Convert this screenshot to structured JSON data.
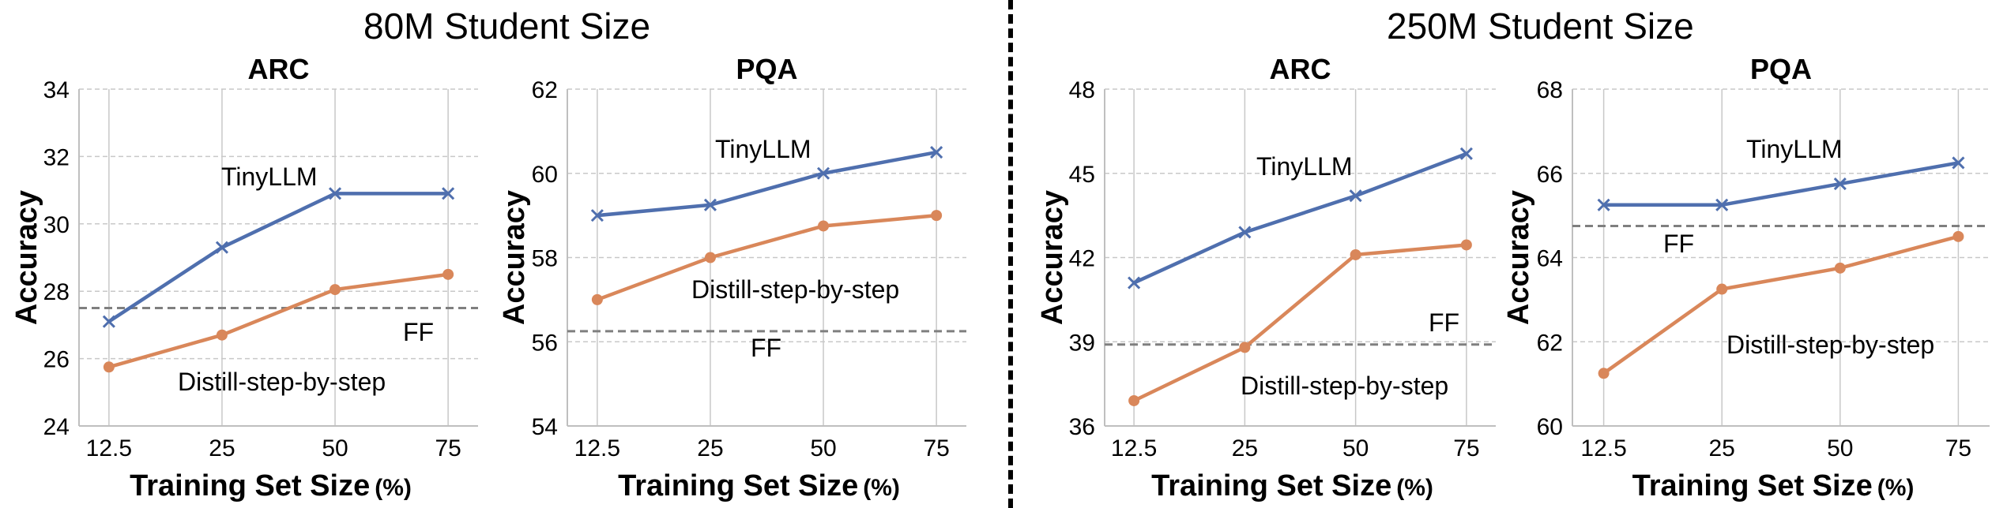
{
  "group_titles": [
    "80M Student Size",
    "250M Student Size"
  ],
  "colors": {
    "tinyllm": "#4F6FAE",
    "distill": "#D9875A",
    "ff": "#7F7F7F",
    "grid": "#C8C8C8"
  },
  "chart_data": [
    {
      "type": "line",
      "title": "ARC",
      "xlabel": "Training Set Size",
      "xlabel_unit": "(%)",
      "ylabel": "Accuracy",
      "categories": [
        "12.5",
        "25",
        "50",
        "75"
      ],
      "ylim": [
        24,
        34
      ],
      "yticks": [
        "24",
        "26",
        "28",
        "30",
        "32",
        "34"
      ],
      "grid": true,
      "series": [
        {
          "name": "TinyLLM",
          "values": [
            27.1,
            29.3,
            30.9,
            30.9
          ],
          "marker": "x"
        },
        {
          "name": "Distill-step-by-step",
          "values": [
            25.75,
            26.7,
            28.05,
            28.5
          ],
          "marker": "circle"
        }
      ],
      "baseline": {
        "name": "FF",
        "value": 27.5
      }
    },
    {
      "type": "line",
      "title": "PQA",
      "xlabel": "Training Set Size",
      "xlabel_unit": "(%)",
      "ylabel": "Accuracy",
      "categories": [
        "12.5",
        "25",
        "50",
        "75"
      ],
      "ylim": [
        54,
        62
      ],
      "yticks": [
        "54",
        "56",
        "58",
        "60",
        "62"
      ],
      "grid": true,
      "series": [
        {
          "name": "TinyLLM",
          "values": [
            59.0,
            59.25,
            60.0,
            60.5
          ],
          "marker": "x"
        },
        {
          "name": "Distill-step-by-step",
          "values": [
            57.0,
            58.0,
            58.75,
            59.0
          ],
          "marker": "circle"
        }
      ],
      "baseline": {
        "name": "FF",
        "value": 56.25
      }
    },
    {
      "type": "line",
      "title": "ARC",
      "xlabel": "Training Set Size",
      "xlabel_unit": "(%)",
      "ylabel": "Accuracy",
      "categories": [
        "12.5",
        "25",
        "50",
        "75"
      ],
      "ylim": [
        36,
        48
      ],
      "yticks": [
        "36",
        "39",
        "42",
        "45",
        "48"
      ],
      "grid": true,
      "series": [
        {
          "name": "TinyLLM",
          "values": [
            41.1,
            42.9,
            44.2,
            45.7
          ],
          "marker": "x"
        },
        {
          "name": "Distill-step-by-step",
          "values": [
            36.9,
            38.8,
            42.1,
            42.45
          ],
          "marker": "circle"
        }
      ],
      "baseline": {
        "name": "FF",
        "value": 38.9
      }
    },
    {
      "type": "line",
      "title": "PQA",
      "xlabel": "Training Set Size",
      "xlabel_unit": "(%)",
      "ylabel": "Accuracy",
      "categories": [
        "12.5",
        "25",
        "50",
        "75"
      ],
      "ylim": [
        60,
        68
      ],
      "yticks": [
        "60",
        "62",
        "64",
        "66",
        "68"
      ],
      "grid": true,
      "series": [
        {
          "name": "TinyLLM",
          "values": [
            65.25,
            65.25,
            65.75,
            66.25
          ],
          "marker": "x"
        },
        {
          "name": "Distill-step-by-step",
          "values": [
            61.25,
            63.25,
            63.75,
            64.5
          ],
          "marker": "circle"
        }
      ],
      "baseline": {
        "name": "FF",
        "value": 64.75
      }
    }
  ]
}
